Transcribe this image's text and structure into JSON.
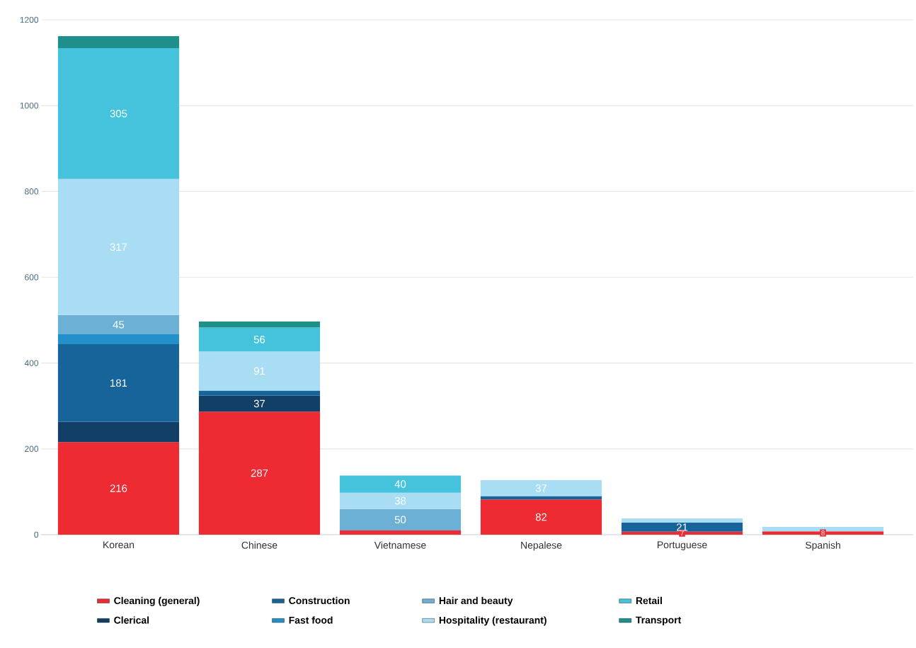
{
  "chart_data": {
    "type": "bar",
    "stacked": true,
    "categories": [
      "Korean",
      "Chinese",
      "Vietnamese",
      "Nepalese",
      "Portuguese",
      "Spanish"
    ],
    "series": [
      {
        "name": "Cleaning (general)",
        "color": "#ee2a33",
        "values": [
          216,
          287,
          10,
          82,
          7,
          8
        ],
        "value_labels": [
          "216",
          "287",
          null,
          "82",
          "7",
          "8"
        ]
      },
      {
        "name": "Clerical",
        "color": "#123f66",
        "values": [
          47,
          37,
          null,
          null,
          null,
          null
        ],
        "value_labels": [
          null,
          "37",
          null,
          null,
          null,
          null
        ]
      },
      {
        "name": "Construction",
        "color": "#17649b",
        "values": [
          181,
          12,
          null,
          8,
          21,
          null
        ],
        "value_labels": [
          "181",
          null,
          null,
          null,
          "21",
          null
        ]
      },
      {
        "name": "Fast food",
        "color": "#2390c9",
        "values": [
          23,
          null,
          null,
          null,
          null,
          null
        ],
        "value_labels": [
          null,
          null,
          null,
          null,
          null,
          null
        ]
      },
      {
        "name": "Hair and beauty",
        "color": "#6cb0d6",
        "values": [
          45,
          null,
          50,
          null,
          null,
          null
        ],
        "value_labels": [
          "45",
          null,
          "50",
          null,
          null,
          null
        ]
      },
      {
        "name": "Hospitality (restaurant)",
        "color": "#a8ddf3",
        "values": [
          317,
          91,
          38,
          37,
          10,
          10
        ],
        "value_labels": [
          "317",
          "91",
          "38",
          "37",
          null,
          null
        ]
      },
      {
        "name": "Retail",
        "color": "#45c2dc",
        "values": [
          305,
          56,
          40,
          null,
          null,
          null
        ],
        "value_labels": [
          "305",
          "56",
          "40",
          null,
          null,
          null
        ]
      },
      {
        "name": "Transport",
        "color": "#1f8f8c",
        "values": [
          28,
          14,
          null,
          null,
          null,
          null
        ],
        "value_labels": [
          null,
          null,
          null,
          null,
          null,
          null
        ]
      }
    ],
    "ylim": [
      0,
      1200
    ],
    "yticks": [
      0,
      200,
      400,
      600,
      800,
      1000,
      1200
    ],
    "grid": "y",
    "legend": "bottom"
  }
}
